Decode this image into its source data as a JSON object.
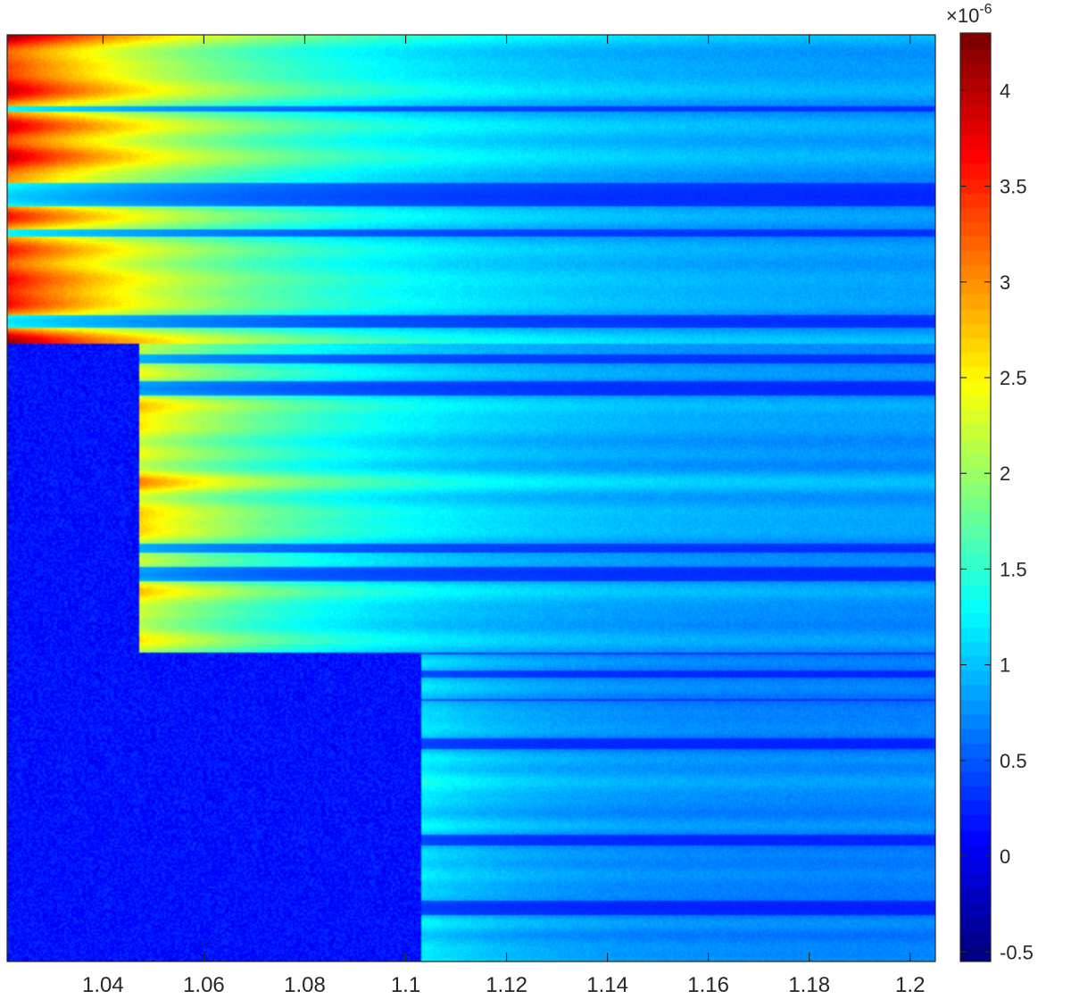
{
  "chart_data": {
    "type": "heatmap",
    "title": "",
    "xlabel": "",
    "ylabel": "",
    "xlim": [
      1.021,
      1.205
    ],
    "x_ticks": [
      1.04,
      1.06,
      1.08,
      1.1,
      1.12,
      1.14,
      1.16,
      1.18,
      1.2
    ],
    "x_tick_labels": [
      "1.04",
      "1.06",
      "1.08",
      "1.1",
      "1.12",
      "1.14",
      "1.16",
      "1.18",
      "1.2"
    ],
    "y_tick_labels": [],
    "colorbar": {
      "colormap": "jet",
      "range": [
        -0.55,
        4.3
      ],
      "ticks": [
        -0.5,
        0,
        0.5,
        1,
        1.5,
        2,
        2.5,
        3,
        3.5,
        4
      ],
      "tick_labels": [
        "-0.5",
        "0",
        "0.5",
        "1",
        "1.5",
        "2",
        "2.5",
        "3",
        "3.5",
        "4"
      ],
      "exponent_label": "×10",
      "exponent_power": "-6"
    },
    "grid": false,
    "regions": [
      {
        "rows": "top third",
        "noise_edge_x": 1.021,
        "peak_value": 4.2,
        "far_value": 0.9
      },
      {
        "rows": "middle third",
        "noise_edge_x": 1.047,
        "peak_value": 3.0,
        "far_value": 0.9
      },
      {
        "rows": "bottom third",
        "noise_edge_x": 1.103,
        "peak_value": 1.4,
        "far_value": 0.8
      }
    ]
  }
}
